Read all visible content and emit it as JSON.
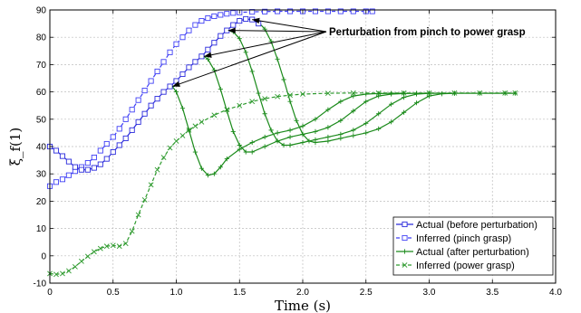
{
  "chart_data": {
    "type": "line",
    "xlabel": "Time (s)",
    "ylabel": "ξ_f(1)",
    "xlim": [
      0,
      4.0
    ],
    "ylim": [
      -10,
      90
    ],
    "xticks": [
      0,
      0.5,
      1.0,
      1.5,
      2.0,
      2.5,
      3.0,
      3.5,
      4.0
    ],
    "xtick_labels": [
      "0",
      "0.5",
      "1.0",
      "1.5",
      "2.0",
      "2.5",
      "3.0",
      "3.5",
      "4.0"
    ],
    "yticks": [
      -10,
      0,
      10,
      20,
      30,
      40,
      50,
      60,
      70,
      80,
      90
    ],
    "grid": true,
    "legend_position": "bottom-right",
    "annotation": "Perturbation from pinch to power grasp",
    "annotation_targets": [
      [
        0.97,
        62
      ],
      [
        1.22,
        73
      ],
      [
        1.41,
        82.5
      ],
      [
        1.6,
        86.5
      ]
    ],
    "series": [
      {
        "name": "Actual (before perturbation)",
        "color": "#2a2adc",
        "style": "solid",
        "marker": "square",
        "points": [
          [
            0,
            40
          ],
          [
            0.05,
            38.5
          ],
          [
            0.1,
            36.5
          ],
          [
            0.15,
            34.5
          ],
          [
            0.2,
            32.5
          ],
          [
            0.25,
            31.5
          ],
          [
            0.3,
            31.5
          ],
          [
            0.35,
            32.2
          ],
          [
            0.4,
            33.5
          ],
          [
            0.45,
            35.5
          ],
          [
            0.5,
            38
          ],
          [
            0.55,
            40.5
          ],
          [
            0.6,
            43
          ],
          [
            0.65,
            46
          ],
          [
            0.7,
            49
          ],
          [
            0.75,
            52
          ],
          [
            0.8,
            55
          ],
          [
            0.85,
            57.5
          ],
          [
            0.9,
            60
          ],
          [
            0.95,
            62
          ],
          [
            1.0,
            64
          ],
          [
            1.05,
            66.5
          ],
          [
            1.1,
            69
          ],
          [
            1.15,
            71
          ],
          [
            1.2,
            73
          ],
          [
            1.25,
            75.5
          ],
          [
            1.3,
            78
          ],
          [
            1.35,
            80.5
          ],
          [
            1.4,
            82.5
          ],
          [
            1.45,
            84.5
          ],
          [
            1.5,
            86
          ],
          [
            1.55,
            86.7
          ],
          [
            1.6,
            86.5
          ],
          [
            1.65,
            85
          ]
        ]
      },
      {
        "name": "Inferred (pinch grasp)",
        "color": "#3f3ff5",
        "style": "dashed",
        "marker": "square",
        "points": [
          [
            0,
            25.5
          ],
          [
            0.05,
            27
          ],
          [
            0.1,
            28
          ],
          [
            0.15,
            29.5
          ],
          [
            0.2,
            31
          ],
          [
            0.25,
            32.5
          ],
          [
            0.3,
            34
          ],
          [
            0.35,
            36
          ],
          [
            0.4,
            38.5
          ],
          [
            0.45,
            41
          ],
          [
            0.5,
            43.5
          ],
          [
            0.55,
            46.5
          ],
          [
            0.6,
            50
          ],
          [
            0.65,
            53.5
          ],
          [
            0.7,
            57
          ],
          [
            0.75,
            60.5
          ],
          [
            0.8,
            64
          ],
          [
            0.85,
            67.5
          ],
          [
            0.9,
            71
          ],
          [
            0.95,
            74.5
          ],
          [
            1.0,
            77.5
          ],
          [
            1.05,
            80
          ],
          [
            1.1,
            82.5
          ],
          [
            1.15,
            84.5
          ],
          [
            1.2,
            86
          ],
          [
            1.25,
            87
          ],
          [
            1.3,
            87.7
          ],
          [
            1.35,
            88.2
          ],
          [
            1.4,
            88.6
          ],
          [
            1.45,
            88.9
          ],
          [
            1.5,
            89.1
          ],
          [
            1.6,
            89.3
          ],
          [
            1.7,
            89.4
          ],
          [
            1.8,
            89.5
          ],
          [
            1.9,
            89.5
          ],
          [
            2.0,
            89.5
          ],
          [
            2.1,
            89.5
          ],
          [
            2.2,
            89.5
          ],
          [
            2.3,
            89.5
          ],
          [
            2.4,
            89.5
          ],
          [
            2.5,
            89.5
          ],
          [
            2.55,
            89.5
          ]
        ]
      },
      {
        "name": "Actual (after perturbation)",
        "color": "#1a8a1a",
        "style": "solid",
        "marker": "plus",
        "branches": [
          [
            [
              0.97,
              62
            ],
            [
              1.0,
              60
            ],
            [
              1.05,
              54
            ],
            [
              1.1,
              46
            ],
            [
              1.15,
              38
            ],
            [
              1.2,
              32
            ],
            [
              1.25,
              29.5
            ],
            [
              1.3,
              30
            ],
            [
              1.35,
              32.5
            ],
            [
              1.4,
              35.5
            ],
            [
              1.5,
              39
            ],
            [
              1.6,
              41.5
            ],
            [
              1.7,
              43.5
            ],
            [
              1.8,
              45
            ],
            [
              1.9,
              46
            ],
            [
              2.0,
              47.5
            ],
            [
              2.1,
              50
            ],
            [
              2.2,
              53.5
            ],
            [
              2.3,
              56.5
            ],
            [
              2.4,
              58.5
            ],
            [
              2.5,
              59.2
            ],
            [
              2.6,
              59.4
            ],
            [
              2.7,
              59.5
            ],
            [
              2.8,
              59.5
            ]
          ],
          [
            [
              1.22,
              73
            ],
            [
              1.25,
              72
            ],
            [
              1.3,
              68
            ],
            [
              1.35,
              61
            ],
            [
              1.4,
              53
            ],
            [
              1.45,
              45.5
            ],
            [
              1.5,
              40.5
            ],
            [
              1.55,
              38
            ],
            [
              1.6,
              38
            ],
            [
              1.7,
              40
            ],
            [
              1.8,
              42
            ],
            [
              1.9,
              43.5
            ],
            [
              2.0,
              44.5
            ],
            [
              2.1,
              45.5
            ],
            [
              2.2,
              47
            ],
            [
              2.3,
              49.5
            ],
            [
              2.4,
              53
            ],
            [
              2.5,
              56.5
            ],
            [
              2.6,
              58.5
            ],
            [
              2.7,
              59.2
            ],
            [
              2.8,
              59.4
            ],
            [
              2.9,
              59.5
            ],
            [
              3.0,
              59.5
            ]
          ],
          [
            [
              1.41,
              82.5
            ],
            [
              1.45,
              82
            ],
            [
              1.5,
              79.5
            ],
            [
              1.55,
              74.5
            ],
            [
              1.6,
              67.5
            ],
            [
              1.65,
              59.5
            ],
            [
              1.7,
              52
            ],
            [
              1.75,
              46
            ],
            [
              1.8,
              42
            ],
            [
              1.85,
              40.5
            ],
            [
              1.9,
              40.5
            ],
            [
              2.0,
              41.5
            ],
            [
              2.1,
              42.5
            ],
            [
              2.2,
              43.5
            ],
            [
              2.3,
              44.5
            ],
            [
              2.4,
              46
            ],
            [
              2.5,
              48.5
            ],
            [
              2.6,
              52
            ],
            [
              2.7,
              55.5
            ],
            [
              2.8,
              58
            ],
            [
              2.9,
              59.2
            ],
            [
              3.0,
              59.5
            ],
            [
              3.2,
              59.5
            ]
          ],
          [
            [
              1.6,
              86.5
            ],
            [
              1.65,
              85.5
            ],
            [
              1.7,
              83
            ],
            [
              1.75,
              78.5
            ],
            [
              1.8,
              72
            ],
            [
              1.85,
              64.5
            ],
            [
              1.9,
              56.5
            ],
            [
              1.95,
              49.5
            ],
            [
              2.0,
              44.5
            ],
            [
              2.05,
              42
            ],
            [
              2.1,
              41.5
            ],
            [
              2.2,
              42
            ],
            [
              2.3,
              43
            ],
            [
              2.4,
              44
            ],
            [
              2.5,
              45
            ],
            [
              2.6,
              46.5
            ],
            [
              2.7,
              49
            ],
            [
              2.8,
              52.5
            ],
            [
              2.9,
              56
            ],
            [
              3.0,
              58.5
            ],
            [
              3.1,
              59.3
            ],
            [
              3.2,
              59.5
            ],
            [
              3.4,
              59.5
            ],
            [
              3.6,
              59.5
            ],
            [
              3.68,
              59.5
            ]
          ]
        ]
      },
      {
        "name": "Inferred (power grasp)",
        "color": "#2e9a2e",
        "style": "dashed",
        "marker": "x",
        "points": [
          [
            0,
            -6.5
          ],
          [
            0.05,
            -6.8
          ],
          [
            0.1,
            -6.5
          ],
          [
            0.15,
            -5.5
          ],
          [
            0.2,
            -4
          ],
          [
            0.25,
            -2
          ],
          [
            0.3,
            -0.2
          ],
          [
            0.35,
            1.5
          ],
          [
            0.4,
            2.7
          ],
          [
            0.45,
            3.5
          ],
          [
            0.5,
            3.8
          ],
          [
            0.55,
            3.5
          ],
          [
            0.6,
            4.5
          ],
          [
            0.65,
            9
          ],
          [
            0.7,
            15
          ],
          [
            0.75,
            20.5
          ],
          [
            0.8,
            26
          ],
          [
            0.85,
            31.5
          ],
          [
            0.9,
            36
          ],
          [
            0.95,
            39.5
          ],
          [
            1.0,
            42
          ],
          [
            1.05,
            44
          ],
          [
            1.1,
            46
          ],
          [
            1.15,
            47.5
          ],
          [
            1.2,
            49
          ],
          [
            1.3,
            51.5
          ],
          [
            1.4,
            53.5
          ],
          [
            1.5,
            55
          ],
          [
            1.6,
            56.5
          ],
          [
            1.7,
            57.5
          ],
          [
            1.8,
            58.3
          ],
          [
            1.9,
            58.8
          ],
          [
            2.0,
            59.2
          ],
          [
            2.2,
            59.5
          ],
          [
            2.4,
            59.6
          ],
          [
            2.6,
            59.6
          ],
          [
            2.8,
            59.6
          ],
          [
            3.0,
            59.6
          ],
          [
            3.2,
            59.6
          ],
          [
            3.4,
            59.6
          ],
          [
            3.6,
            59.6
          ],
          [
            3.68,
            59.6
          ]
        ]
      }
    ]
  }
}
